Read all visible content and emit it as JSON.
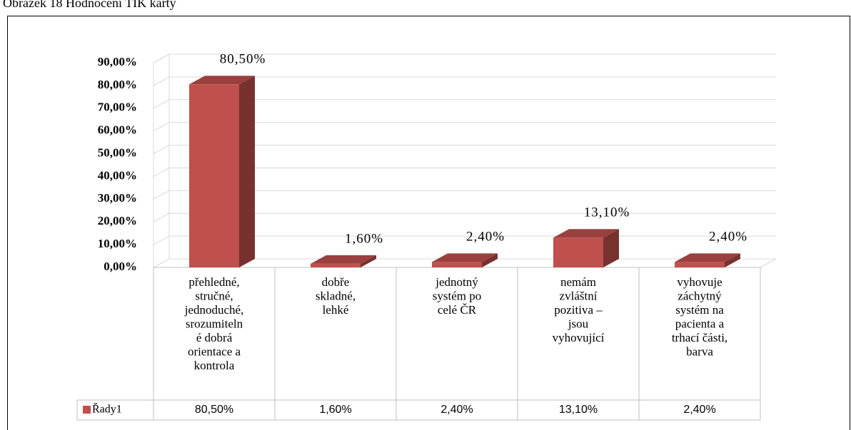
{
  "chart_data": {
    "type": "bar3d",
    "caption": "Obrázek 18 Hodnocení TIK karty",
    "categories": [
      "přehledné,\nstručné,\njednoduché,\nsrozumiteln\né dobrá\norientace a\nkontrola",
      "dobře\nskladné,\nlehké",
      "jednotný\nsystém po\ncelé ČR",
      "nemám\nzvláštní\npozitiva –\njsou\nvyhovující",
      "vyhovuje\nzáchytný\nsystém na\npacienta a\ntrhací části,\nbarva"
    ],
    "series": [
      {
        "name": "Řady1",
        "color": "#c0504d",
        "values": [
          80.5,
          1.6,
          2.4,
          13.1,
          2.4
        ],
        "value_labels": [
          "80,50%",
          "1,60%",
          "2,40%",
          "13,10%",
          "2,40%"
        ]
      }
    ],
    "ylim": [
      0,
      90
    ],
    "yticks": [
      {
        "value": 0,
        "label": "0,00%"
      },
      {
        "value": 10,
        "label": "10,00%"
      },
      {
        "value": 20,
        "label": "20,00%"
      },
      {
        "value": 30,
        "label": "30,00%"
      },
      {
        "value": 40,
        "label": "40,00%"
      },
      {
        "value": 50,
        "label": "50,00%"
      },
      {
        "value": 60,
        "label": "60,00%"
      },
      {
        "value": 70,
        "label": "70,00%"
      },
      {
        "value": 80,
        "label": "80,00%"
      },
      {
        "value": 90,
        "label": "90,00%"
      }
    ],
    "grid": true
  }
}
